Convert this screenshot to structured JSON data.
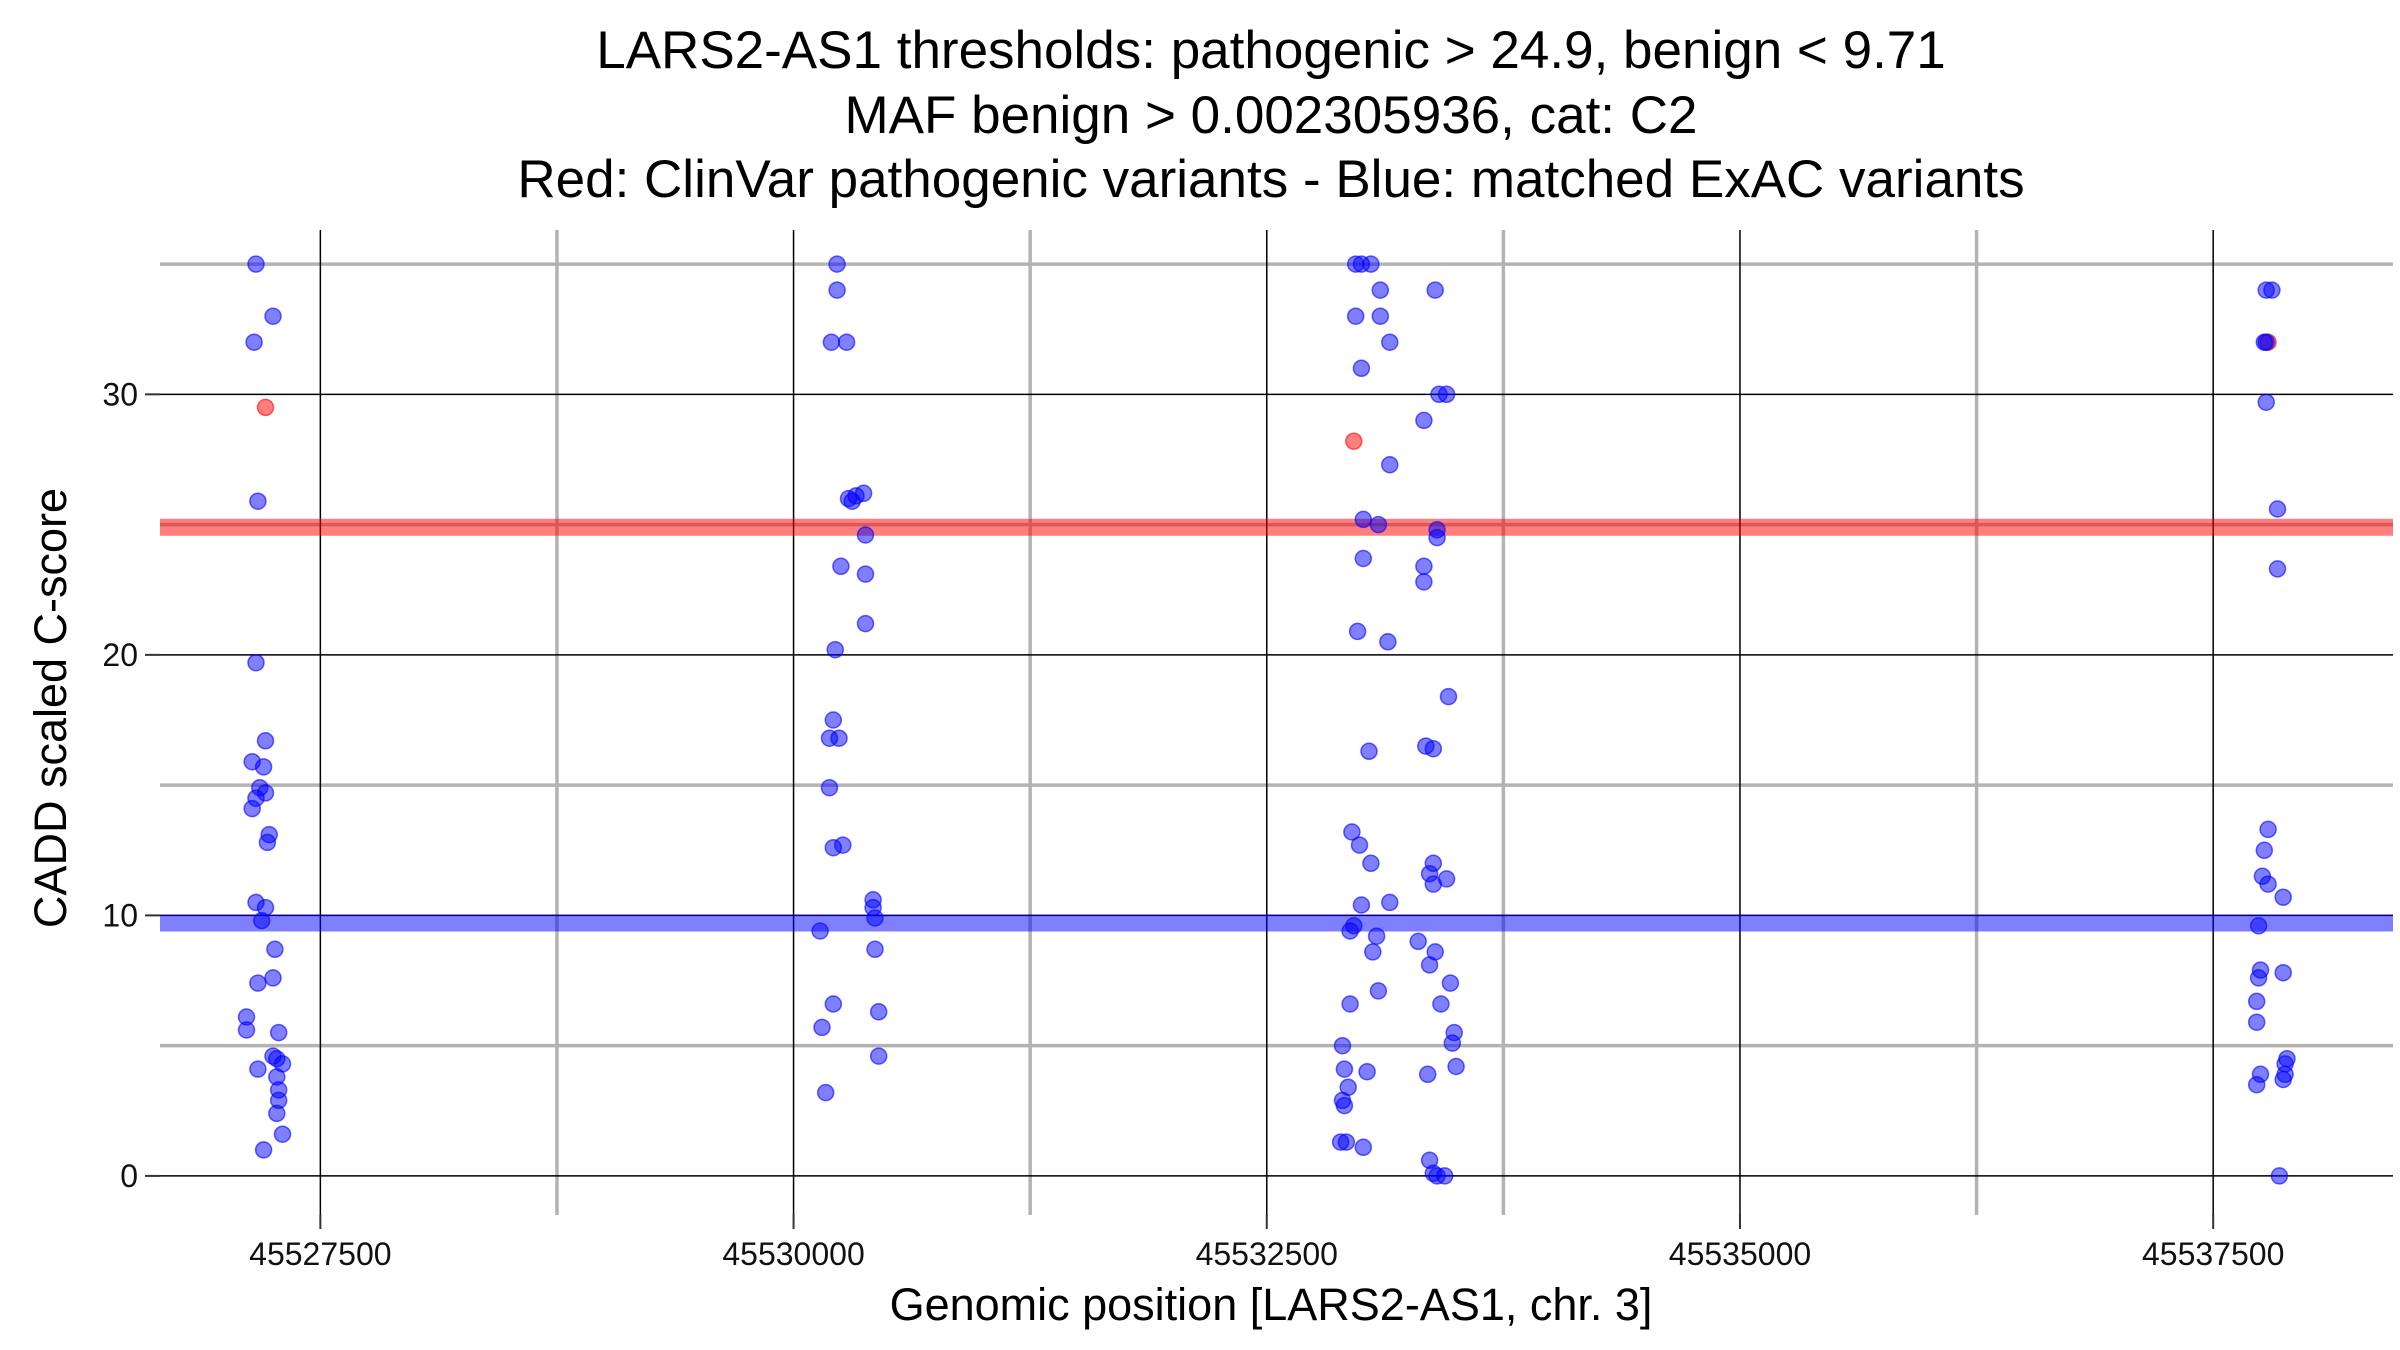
{
  "chart_data": {
    "type": "scatter",
    "title_lines": [
      "LARS2-AS1 thresholds: pathogenic > 24.9, benign < 9.71",
      "MAF benign > 0.002305936, cat: C2",
      "Red: ClinVar pathogenic variants - Blue: matched ExAC variants"
    ],
    "xlabel": "Genomic position [LARS2-AS1, chr. 3]",
    "ylabel": "CADD scaled C-score",
    "xlim": [
      45526600,
      45538450
    ],
    "ylim": [
      -1.5,
      36.5
    ],
    "x_ticks": [
      45527500,
      45530000,
      45532500,
      45535000,
      45537500
    ],
    "x_tick_labels": [
      "45527500",
      "45530000",
      "45532500",
      "45535000",
      "45537500"
    ],
    "x_minor_ticks": [
      45528750,
      45531250,
      45533750,
      45536250
    ],
    "y_ticks": [
      0,
      10,
      20,
      30
    ],
    "y_tick_labels": [
      "0",
      "10",
      "20",
      "30"
    ],
    "y_minor_ticks": [
      5,
      15,
      25,
      35
    ],
    "grid": true,
    "thresholds": [
      {
        "name": "pathogenic",
        "value": 24.9,
        "color": "#ff0000"
      },
      {
        "name": "benign",
        "value": 9.71,
        "color": "#0000ff"
      }
    ],
    "colors": {
      "clinvar": "#ff0000",
      "exac": "#0000ff"
    },
    "series": [
      {
        "group": "clinvar",
        "points": [
          [
            45527210,
            29.5
          ],
          [
            45532960,
            28.2
          ],
          [
            45537790,
            32
          ]
        ]
      },
      {
        "group": "exac",
        "points": [
          [
            45527160,
            35
          ],
          [
            45527250,
            33
          ],
          [
            45527150,
            32
          ],
          [
            45527170,
            25.9
          ],
          [
            45527160,
            19.7
          ],
          [
            45527210,
            16.7
          ],
          [
            45527140,
            15.9
          ],
          [
            45527200,
            15.7
          ],
          [
            45527180,
            14.9
          ],
          [
            45527210,
            14.7
          ],
          [
            45527160,
            14.5
          ],
          [
            45527140,
            14.1
          ],
          [
            45527230,
            13.1
          ],
          [
            45527220,
            12.8
          ],
          [
            45527160,
            10.5
          ],
          [
            45527210,
            10.3
          ],
          [
            45527190,
            9.8
          ],
          [
            45527260,
            8.7
          ],
          [
            45527250,
            7.6
          ],
          [
            45527170,
            7.4
          ],
          [
            45527110,
            6.1
          ],
          [
            45527110,
            5.6
          ],
          [
            45527280,
            5.5
          ],
          [
            45527250,
            4.6
          ],
          [
            45527270,
            4.5
          ],
          [
            45527300,
            4.3
          ],
          [
            45527170,
            4.1
          ],
          [
            45527270,
            3.8
          ],
          [
            45527280,
            3.3
          ],
          [
            45527280,
            2.9
          ],
          [
            45527270,
            2.4
          ],
          [
            45527300,
            1.6
          ],
          [
            45527200,
            1.0
          ],
          [
            45530230,
            35
          ],
          [
            45530230,
            34
          ],
          [
            45530200,
            32
          ],
          [
            45530280,
            32
          ],
          [
            45530370,
            26.2
          ],
          [
            45530330,
            26.1
          ],
          [
            45530290,
            26
          ],
          [
            45530310,
            25.9
          ],
          [
            45530380,
            24.6
          ],
          [
            45530250,
            23.4
          ],
          [
            45530380,
            23.1
          ],
          [
            45530380,
            21.2
          ],
          [
            45530220,
            20.2
          ],
          [
            45530210,
            17.5
          ],
          [
            45530190,
            16.8
          ],
          [
            45530240,
            16.8
          ],
          [
            45530190,
            14.9
          ],
          [
            45530210,
            12.6
          ],
          [
            45530260,
            12.7
          ],
          [
            45530420,
            10.6
          ],
          [
            45530420,
            10.3
          ],
          [
            45530430,
            9.9
          ],
          [
            45530140,
            9.4
          ],
          [
            45530430,
            8.7
          ],
          [
            45530210,
            6.6
          ],
          [
            45530450,
            6.3
          ],
          [
            45530150,
            5.7
          ],
          [
            45530450,
            4.6
          ],
          [
            45530170,
            3.2
          ],
          [
            45532970,
            35
          ],
          [
            45533000,
            35
          ],
          [
            45533050,
            35
          ],
          [
            45533100,
            34
          ],
          [
            45533390,
            34
          ],
          [
            45532970,
            33
          ],
          [
            45533100,
            33
          ],
          [
            45533150,
            32
          ],
          [
            45533000,
            31
          ],
          [
            45533410,
            30
          ],
          [
            45533450,
            30
          ],
          [
            45533330,
            29
          ],
          [
            45533150,
            27.3
          ],
          [
            45533010,
            25.2
          ],
          [
            45533090,
            25
          ],
          [
            45533400,
            24.8
          ],
          [
            45533400,
            24.5
          ],
          [
            45533010,
            23.7
          ],
          [
            45533330,
            23.4
          ],
          [
            45533330,
            22.8
          ],
          [
            45532980,
            20.9
          ],
          [
            45533140,
            20.5
          ],
          [
            45533460,
            18.4
          ],
          [
            45533340,
            16.5
          ],
          [
            45533380,
            16.4
          ],
          [
            45533040,
            16.3
          ],
          [
            45532950,
            13.2
          ],
          [
            45532990,
            12.7
          ],
          [
            45533050,
            12
          ],
          [
            45533380,
            12
          ],
          [
            45533360,
            11.6
          ],
          [
            45533380,
            11.2
          ],
          [
            45533450,
            11.4
          ],
          [
            45533150,
            10.5
          ],
          [
            45533000,
            10.4
          ],
          [
            45532960,
            9.6
          ],
          [
            45532940,
            9.4
          ],
          [
            45533080,
            9.2
          ],
          [
            45533300,
            9
          ],
          [
            45533390,
            8.6
          ],
          [
            45533060,
            8.6
          ],
          [
            45533360,
            8.1
          ],
          [
            45533470,
            7.4
          ],
          [
            45533090,
            7.1
          ],
          [
            45532940,
            6.6
          ],
          [
            45533420,
            6.6
          ],
          [
            45533490,
            5.5
          ],
          [
            45533480,
            5.1
          ],
          [
            45532900,
            5
          ],
          [
            45533500,
            4.2
          ],
          [
            45532910,
            4.1
          ],
          [
            45533030,
            4.0
          ],
          [
            45533350,
            3.9
          ],
          [
            45532930,
            3.4
          ],
          [
            45532900,
            2.9
          ],
          [
            45532910,
            2.7
          ],
          [
            45532890,
            1.3
          ],
          [
            45532920,
            1.3
          ],
          [
            45533010,
            1.1
          ],
          [
            45533360,
            0.6
          ],
          [
            45533380,
            0.1
          ],
          [
            45533400,
            0.0
          ],
          [
            45533440,
            0.0
          ],
          [
            45537780,
            34
          ],
          [
            45537810,
            34
          ],
          [
            45537770,
            32
          ],
          [
            45537780,
            32
          ],
          [
            45537780,
            29.7
          ],
          [
            45537840,
            25.6
          ],
          [
            45537840,
            23.3
          ],
          [
            45537790,
            13.3
          ],
          [
            45537770,
            12.5
          ],
          [
            45537760,
            11.5
          ],
          [
            45537790,
            11.2
          ],
          [
            45537870,
            10.7
          ],
          [
            45537740,
            9.6
          ],
          [
            45537750,
            7.9
          ],
          [
            45537870,
            7.8
          ],
          [
            45537740,
            7.6
          ],
          [
            45537730,
            6.7
          ],
          [
            45537730,
            5.9
          ],
          [
            45537890,
            4.5
          ],
          [
            45537880,
            4.3
          ],
          [
            45537750,
            3.9
          ],
          [
            45537880,
            3.9
          ],
          [
            45537870,
            3.7
          ],
          [
            45537730,
            3.5
          ],
          [
            45537850,
            0.0
          ]
        ]
      }
    ]
  }
}
